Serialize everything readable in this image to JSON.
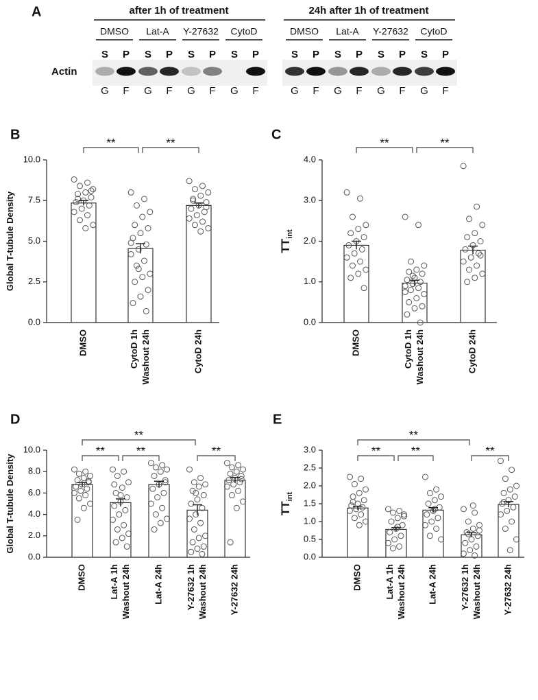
{
  "blot": {
    "letter": "A",
    "protein": "Actin",
    "groups": [
      {
        "title": "after 1h of treatment",
        "treatments": [
          "DMSO",
          "Lat-A",
          "Y-27632",
          "CytoD"
        ]
      },
      {
        "title": "24h after 1h of treatment",
        "treatments": [
          "DMSO",
          "Lat-A",
          "Y-27632",
          "CytoD"
        ]
      }
    ],
    "fractions": [
      "S",
      "P"
    ],
    "states": [
      "G",
      "F"
    ]
  },
  "chart_data": [
    {
      "type": "bar",
      "panel": "B",
      "ylabel": "Global T-tubule Density",
      "categories": [
        [
          "DMSO"
        ],
        [
          "CytoD 1h",
          "Washout 24h"
        ],
        [
          "CytoD 24h"
        ]
      ],
      "values": [
        7.35,
        4.55,
        7.2
      ],
      "errors": [
        0.15,
        0.3,
        0.15
      ],
      "points": [
        [
          8.8,
          8.6,
          8.4,
          8.2,
          8.0,
          7.9,
          7.7,
          7.5,
          7.4,
          7.2,
          7.0,
          6.8,
          6.6,
          6.3,
          6.0,
          5.8,
          7.6,
          8.1
        ],
        [
          8.0,
          7.6,
          7.2,
          6.8,
          6.5,
          6.0,
          5.8,
          5.5,
          5.2,
          4.8,
          4.5,
          4.2,
          3.8,
          3.5,
          3.0,
          2.8,
          2.5,
          2.0,
          1.6,
          1.2,
          0.7,
          3.3,
          4.9
        ],
        [
          8.7,
          8.4,
          8.2,
          8.0,
          7.8,
          7.6,
          7.4,
          7.2,
          7.0,
          6.8,
          6.6,
          6.4,
          6.2,
          6.0,
          5.8,
          5.6,
          7.5,
          7.1
        ]
      ],
      "ylim": [
        0,
        10
      ],
      "yticks": [
        {
          "value": 0,
          "label": "0.0"
        },
        {
          "value": 2.5,
          "label": "2.5"
        },
        {
          "value": 5,
          "label": "5.0"
        },
        {
          "value": 7.5,
          "label": "7.5"
        },
        {
          "value": 10,
          "label": "10.0"
        }
      ],
      "brackets": [
        {
          "from": 0,
          "to": 1,
          "label": "**"
        },
        {
          "from": 1,
          "to": 2,
          "label": "**"
        }
      ]
    },
    {
      "type": "bar",
      "panel": "C",
      "ylabel": "TT",
      "ylabel_sub": "int",
      "categories": [
        [
          "DMSO"
        ],
        [
          "CytoD 1h",
          "Washout 24h"
        ],
        [
          "CytoD 24h"
        ]
      ],
      "values": [
        1.9,
        0.97,
        1.78
      ],
      "errors": [
        0.1,
        0.07,
        0.1
      ],
      "points": [
        [
          3.2,
          3.05,
          2.6,
          2.4,
          2.3,
          2.2,
          2.1,
          2.0,
          1.9,
          1.8,
          1.7,
          1.6,
          1.5,
          1.4,
          1.3,
          1.2,
          1.1,
          0.85
        ],
        [
          2.6,
          2.4,
          1.5,
          1.4,
          1.3,
          1.25,
          1.2,
          1.1,
          1.05,
          1.0,
          0.95,
          0.9,
          0.85,
          0.8,
          0.7,
          0.6,
          0.5,
          0.4,
          0.35,
          0.2,
          0.0,
          1.15,
          0.75
        ],
        [
          3.85,
          2.85,
          2.55,
          2.4,
          2.2,
          2.1,
          2.0,
          1.9,
          1.8,
          1.7,
          1.6,
          1.5,
          1.4,
          1.3,
          1.2,
          1.1,
          1.0,
          1.65
        ]
      ],
      "ylim": [
        0,
        4
      ],
      "yticks": [
        {
          "value": 0,
          "label": "0.0"
        },
        {
          "value": 1,
          "label": "1.0"
        },
        {
          "value": 2,
          "label": "2.0"
        },
        {
          "value": 3,
          "label": "3.0"
        },
        {
          "value": 4,
          "label": "4.0"
        }
      ],
      "brackets": [
        {
          "from": 0,
          "to": 1,
          "label": "**"
        },
        {
          "from": 1,
          "to": 2,
          "label": "**"
        }
      ]
    },
    {
      "type": "bar",
      "panel": "D",
      "ylabel": "Global T-tubule Density",
      "categories": [
        [
          "DMSO"
        ],
        [
          "Lat-A 1h",
          "Washout 24h"
        ],
        [
          "Lat-A 24h"
        ],
        [
          "Y-27632 1h",
          "Washout 24h"
        ],
        [
          "Y-27632 24h"
        ]
      ],
      "values": [
        6.8,
        5.1,
        6.8,
        4.4,
        7.2
      ],
      "errors": [
        0.2,
        0.35,
        0.3,
        0.5,
        0.25
      ],
      "points": [
        [
          8.2,
          8.0,
          7.8,
          7.6,
          7.4,
          7.2,
          7.0,
          6.8,
          6.6,
          6.4,
          6.2,
          6.0,
          5.8,
          5.5,
          5.0,
          4.6,
          3.5,
          7.1
        ],
        [
          8.2,
          8.0,
          7.6,
          7.0,
          6.5,
          6.0,
          5.6,
          5.2,
          4.8,
          4.4,
          4.0,
          3.5,
          3.0,
          2.6,
          2.2,
          1.8,
          1.4,
          1.0,
          5.8,
          6.8
        ],
        [
          8.8,
          8.6,
          8.4,
          8.2,
          8.0,
          7.6,
          7.2,
          6.8,
          6.4,
          6.0,
          5.6,
          5.0,
          4.6,
          4.0,
          3.6,
          3.2,
          2.6,
          7.0
        ],
        [
          8.2,
          7.4,
          7.0,
          6.8,
          6.6,
          6.2,
          5.8,
          5.4,
          5.0,
          4.6,
          4.0,
          3.6,
          3.2,
          2.6,
          2.0,
          1.8,
          1.4,
          1.0,
          0.8,
          0.5,
          0.3,
          6.0
        ],
        [
          8.8,
          8.6,
          8.4,
          8.2,
          8.0,
          7.8,
          7.6,
          7.4,
          7.2,
          7.0,
          6.8,
          6.6,
          6.2,
          5.8,
          5.2,
          4.6,
          1.4,
          7.3
        ]
      ],
      "ylim": [
        0,
        10
      ],
      "yticks": [
        {
          "value": 0,
          "label": "0.0"
        },
        {
          "value": 2,
          "label": "2.0"
        },
        {
          "value": 4,
          "label": "4.0"
        },
        {
          "value": 6,
          "label": "6.0"
        },
        {
          "value": 8,
          "label": "8.0"
        },
        {
          "value": 10,
          "label": "10.0"
        }
      ],
      "brackets": [
        {
          "from": 0,
          "to": 3,
          "label": "**"
        },
        {
          "from": 0,
          "to": 1,
          "label": "**"
        },
        {
          "from": 1,
          "to": 2,
          "label": "**"
        },
        {
          "from": 3,
          "to": 4,
          "label": "**"
        }
      ]
    },
    {
      "type": "bar",
      "panel": "E",
      "ylabel": "TT",
      "ylabel_sub": "int",
      "categories": [
        [
          "DMSO"
        ],
        [
          "Lat-A 1h",
          "Washout 24h"
        ],
        [
          "Lat-A 24h"
        ],
        [
          "Y-27632 1h",
          "Washout 24h"
        ],
        [
          "Y-27632 24h"
        ]
      ],
      "values": [
        1.38,
        0.78,
        1.32,
        0.63,
        1.48
      ],
      "errors": [
        0.05,
        0.05,
        0.07,
        0.06,
        0.08
      ],
      "points": [
        [
          2.25,
          2.2,
          2.05,
          1.9,
          1.8,
          1.7,
          1.6,
          1.5,
          1.45,
          1.4,
          1.35,
          1.3,
          1.2,
          1.1,
          1.0,
          0.9,
          1.55
        ],
        [
          1.35,
          1.3,
          1.25,
          1.2,
          1.1,
          1.0,
          0.9,
          0.8,
          0.7,
          0.6,
          0.5,
          0.4,
          0.3,
          0.25,
          1.15,
          0.85
        ],
        [
          2.25,
          1.9,
          1.8,
          1.7,
          1.6,
          1.5,
          1.4,
          1.3,
          1.2,
          1.1,
          1.0,
          0.9,
          0.8,
          0.6,
          0.5,
          1.35
        ],
        [
          1.35,
          1.25,
          1.0,
          0.9,
          0.8,
          0.7,
          0.6,
          0.5,
          0.4,
          0.3,
          0.2,
          0.1,
          0.05,
          0.65,
          0.75,
          1.45
        ],
        [
          2.7,
          2.45,
          2.2,
          2.0,
          1.9,
          1.8,
          1.7,
          1.6,
          1.5,
          1.4,
          1.3,
          1.2,
          1.0,
          0.8,
          0.5,
          0.2,
          1.55
        ]
      ],
      "ylim": [
        0,
        3
      ],
      "yticks": [
        {
          "value": 0,
          "label": "0.0"
        },
        {
          "value": 0.5,
          "label": "0.5"
        },
        {
          "value": 1,
          "label": "1.0"
        },
        {
          "value": 1.5,
          "label": "1.5"
        },
        {
          "value": 2,
          "label": "2.0"
        },
        {
          "value": 2.5,
          "label": "2.5"
        },
        {
          "value": 3,
          "label": "3.0"
        }
      ],
      "brackets": [
        {
          "from": 0,
          "to": 3,
          "label": "**"
        },
        {
          "from": 0,
          "to": 1,
          "label": "**"
        },
        {
          "from": 1,
          "to": 2,
          "label": "**"
        },
        {
          "from": 3,
          "to": 4,
          "label": "**"
        }
      ]
    }
  ]
}
